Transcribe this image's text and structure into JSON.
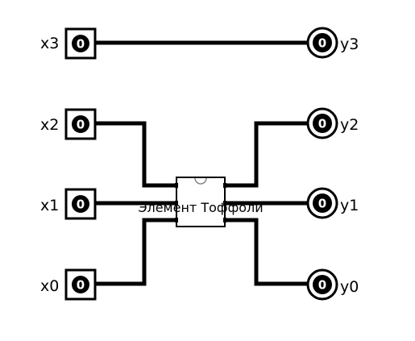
{
  "inputs": [
    {
      "label": "x3",
      "value": "0"
    },
    {
      "label": "x2",
      "value": "0"
    },
    {
      "label": "x1",
      "value": "0"
    },
    {
      "label": "x0",
      "value": "0"
    }
  ],
  "outputs": [
    {
      "label": "y3",
      "value": "0"
    },
    {
      "label": "y2",
      "value": "0"
    },
    {
      "label": "y1",
      "value": "0"
    },
    {
      "label": "y0",
      "value": "0"
    }
  ],
  "gate": {
    "label": "Элемент Тоффоли"
  }
}
